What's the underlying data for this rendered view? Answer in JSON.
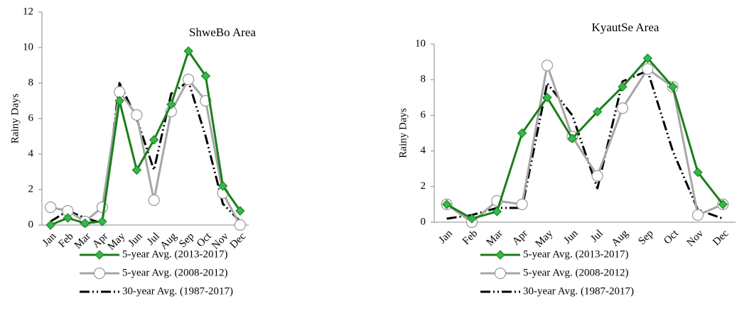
{
  "chart_data": [
    {
      "type": "line",
      "title": "ShweBo Area",
      "ylabel": "Rainy Days",
      "categories": [
        "Jan",
        "Feb",
        "Mar",
        "Apr",
        "May",
        "Jun",
        "Jul",
        "Aug",
        "Sep",
        "Oct",
        "Nov",
        "Dec"
      ],
      "ylim": [
        0,
        12
      ],
      "yticks": [
        0,
        2,
        4,
        6,
        8,
        10,
        12
      ],
      "legend": "bottom",
      "series": [
        {
          "name": "5-year Avg. (2013-2017)",
          "color": "#1a7f1a",
          "marker": "diamond",
          "marker_color": "#33b84a",
          "line_style": "solid",
          "values": [
            0,
            0.4,
            0.1,
            0.2,
            7.0,
            3.1,
            4.8,
            6.8,
            9.8,
            8.4,
            2.2,
            0.8
          ]
        },
        {
          "name": "5-year Avg. (2008-2012)",
          "color": "#a6a6a6",
          "marker": "circle",
          "marker_color": "#ffffff",
          "line_style": "solid",
          "values": [
            1.0,
            0.8,
            0.2,
            1.0,
            7.5,
            6.2,
            1.4,
            6.4,
            8.2,
            7.0,
            1.8,
            0.0
          ]
        },
        {
          "name": "30-year Avg. (1987-2017)",
          "color": "#000000",
          "marker": "none",
          "line_style": "dash-dot-dot",
          "values": [
            0.2,
            0.8,
            0.4,
            0.1,
            8.0,
            6.0,
            3.1,
            7.4,
            8.1,
            5.0,
            1.2,
            0.2
          ]
        }
      ]
    },
    {
      "type": "line",
      "title": "KyautSe Area",
      "ylabel": "Rainy Days",
      "categories": [
        "Jan",
        "Feb",
        "Mar",
        "Apr",
        "May",
        "Jun",
        "Jul",
        "Aug",
        "Sep",
        "Oct",
        "Nov",
        "Dec"
      ],
      "ylim": [
        0,
        10
      ],
      "yticks": [
        0,
        2,
        4,
        6,
        8,
        10
      ],
      "legend": "bottom",
      "series": [
        {
          "name": "5-year Avg. (2013-2017)",
          "color": "#1a7f1a",
          "marker": "diamond",
          "marker_color": "#33b84a",
          "line_style": "solid",
          "values": [
            1.0,
            0.2,
            0.6,
            5.0,
            7.0,
            4.7,
            6.2,
            7.6,
            9.2,
            7.6,
            2.8,
            1.0
          ]
        },
        {
          "name": "5-year Avg. (2008-2012)",
          "color": "#a6a6a6",
          "marker": "circle",
          "marker_color": "#ffffff",
          "line_style": "solid",
          "values": [
            1.0,
            0.0,
            1.2,
            1.0,
            8.8,
            4.8,
            2.6,
            6.4,
            8.6,
            7.6,
            0.4,
            1.0
          ]
        },
        {
          "name": "30-year Avg. (1987-2017)",
          "color": "#000000",
          "marker": "none",
          "line_style": "dash-dot-dot",
          "values": [
            0.2,
            0.4,
            0.8,
            0.8,
            7.8,
            6.0,
            1.9,
            7.9,
            8.5,
            4.0,
            0.7,
            0.2
          ]
        }
      ]
    }
  ]
}
